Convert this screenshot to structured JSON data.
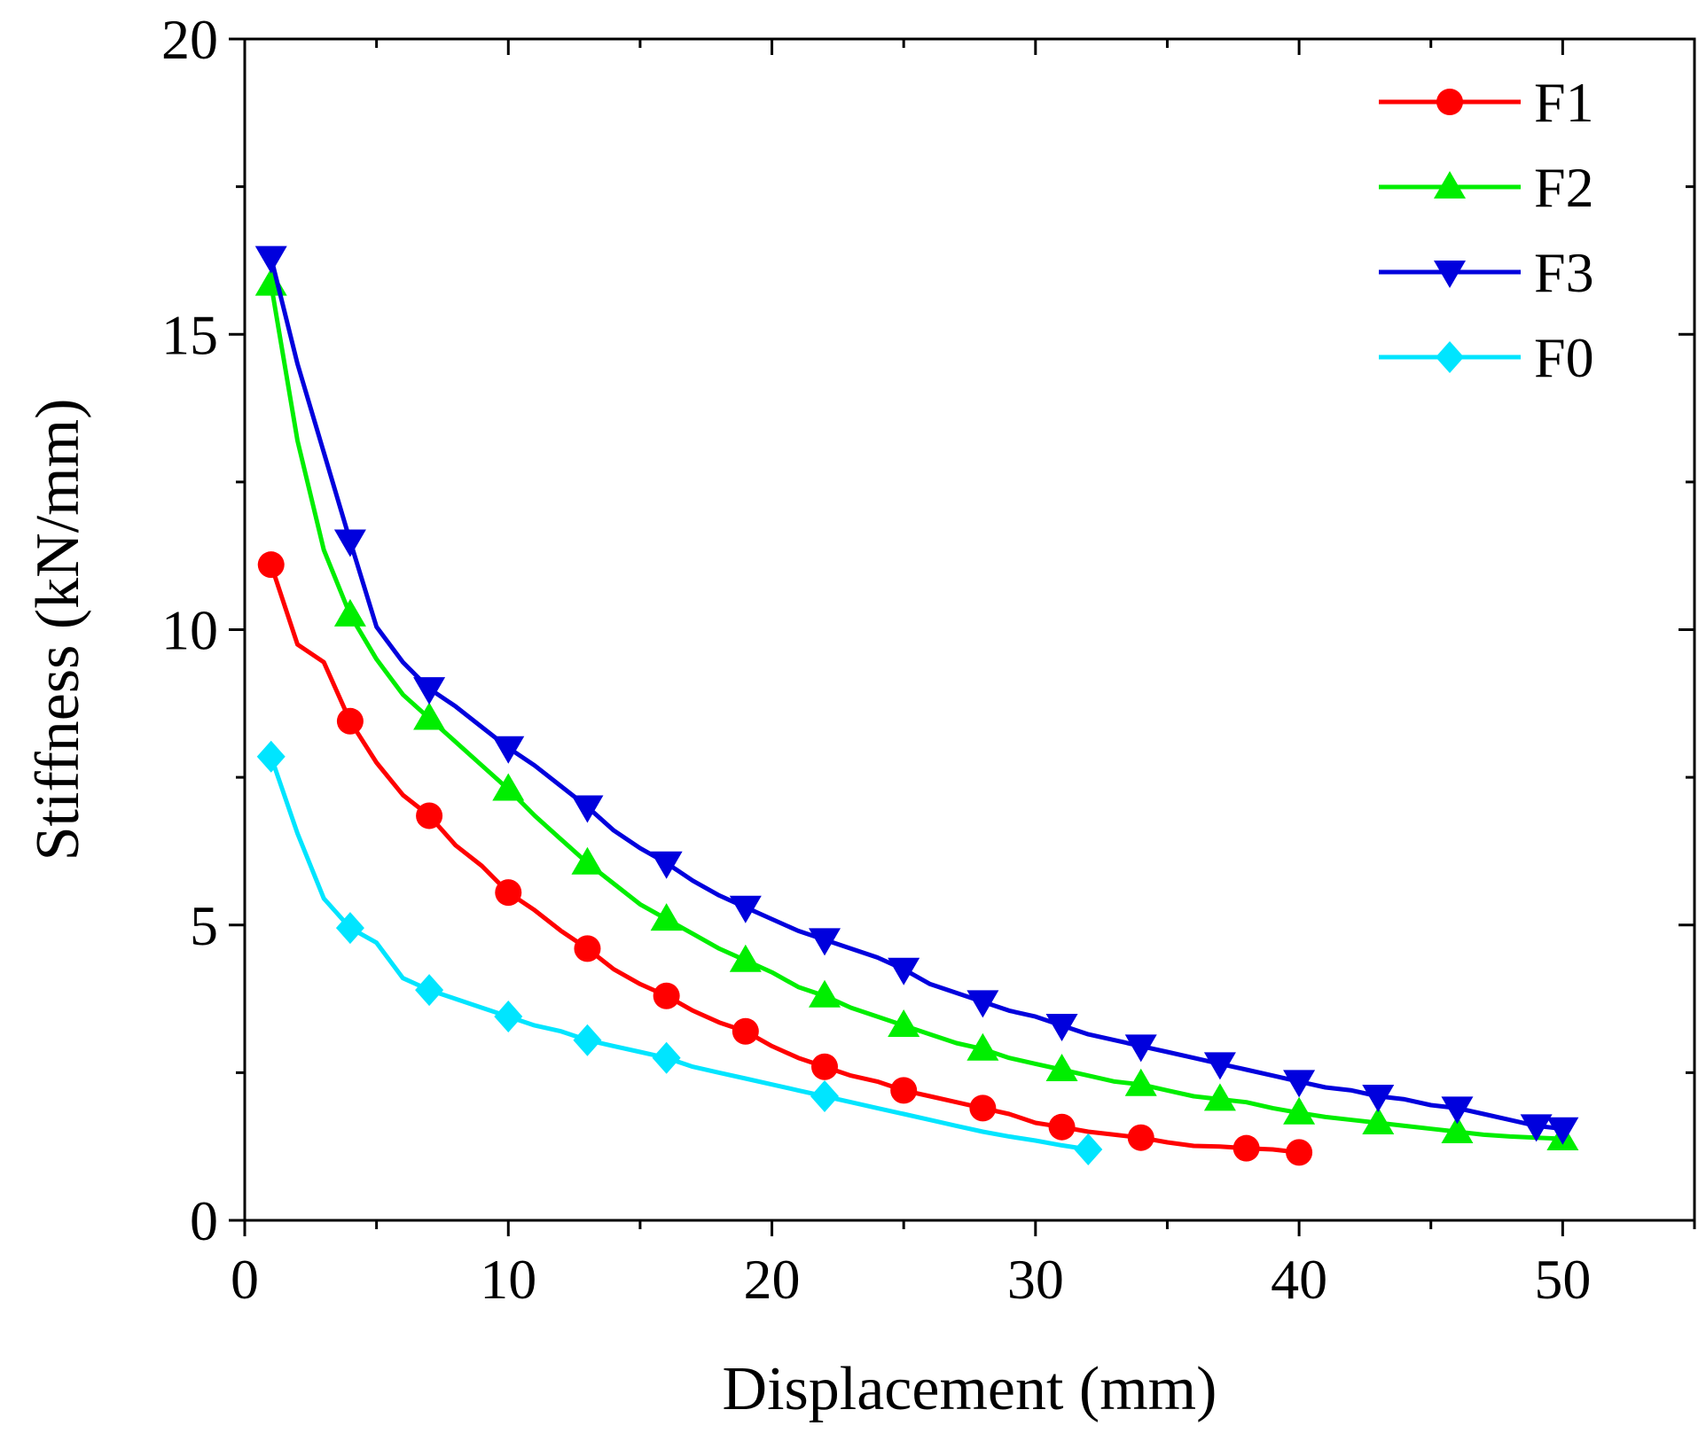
{
  "chart_data": {
    "type": "line",
    "title": "",
    "xlabel": "Displacement (mm)",
    "ylabel": "Stiffness (kN/mm)",
    "xlim": [
      0,
      55
    ],
    "ylim": [
      0,
      20
    ],
    "xticks": [
      0,
      10,
      20,
      30,
      40,
      50
    ],
    "yticks": [
      0,
      5,
      10,
      15,
      20
    ],
    "grid": false,
    "legend_position": "top-right",
    "series": [
      {
        "name": "F1",
        "color": "#ff0000",
        "marker": "circle",
        "line": [
          [
            1,
            11.1
          ],
          [
            2,
            9.75
          ],
          [
            3,
            9.45
          ],
          [
            4,
            8.45
          ],
          [
            5,
            7.75
          ],
          [
            6,
            7.2
          ],
          [
            7,
            6.85
          ],
          [
            8,
            6.35
          ],
          [
            9,
            6.0
          ],
          [
            10,
            5.55
          ],
          [
            11,
            5.25
          ],
          [
            12,
            4.9
          ],
          [
            13,
            4.6
          ],
          [
            14,
            4.25
          ],
          [
            15,
            4.0
          ],
          [
            16,
            3.8
          ],
          [
            17,
            3.55
          ],
          [
            18,
            3.35
          ],
          [
            19,
            3.2
          ],
          [
            20,
            2.95
          ],
          [
            21,
            2.75
          ],
          [
            22,
            2.6
          ],
          [
            23,
            2.45
          ],
          [
            24,
            2.35
          ],
          [
            25,
            2.2
          ],
          [
            26,
            2.1
          ],
          [
            27,
            2.0
          ],
          [
            28,
            1.9
          ],
          [
            29,
            1.8
          ],
          [
            30,
            1.65
          ],
          [
            31,
            1.58
          ],
          [
            32,
            1.5
          ],
          [
            33,
            1.45
          ],
          [
            34,
            1.4
          ],
          [
            35,
            1.32
          ],
          [
            36,
            1.26
          ],
          [
            37,
            1.25
          ],
          [
            38,
            1.22
          ],
          [
            39,
            1.2
          ],
          [
            40,
            1.15
          ]
        ],
        "markers": [
          [
            1,
            11.1
          ],
          [
            4,
            8.45
          ],
          [
            7,
            6.85
          ],
          [
            10,
            5.55
          ],
          [
            13,
            4.6
          ],
          [
            16,
            3.8
          ],
          [
            19,
            3.2
          ],
          [
            22,
            2.6
          ],
          [
            25,
            2.2
          ],
          [
            28,
            1.9
          ],
          [
            31,
            1.58
          ],
          [
            34,
            1.4
          ],
          [
            38,
            1.22
          ],
          [
            40,
            1.15
          ]
        ]
      },
      {
        "name": "F2",
        "color": "#00ee00",
        "marker": "triangle-up",
        "line": [
          [
            1,
            15.85
          ],
          [
            2,
            13.2
          ],
          [
            3,
            11.35
          ],
          [
            4,
            10.25
          ],
          [
            5,
            9.5
          ],
          [
            6,
            8.9
          ],
          [
            7,
            8.5
          ],
          [
            8,
            8.1
          ],
          [
            9,
            7.7
          ],
          [
            10,
            7.3
          ],
          [
            11,
            6.85
          ],
          [
            12,
            6.45
          ],
          [
            13,
            6.05
          ],
          [
            14,
            5.7
          ],
          [
            15,
            5.35
          ],
          [
            16,
            5.1
          ],
          [
            17,
            4.85
          ],
          [
            18,
            4.6
          ],
          [
            19,
            4.4
          ],
          [
            20,
            4.2
          ],
          [
            21,
            3.95
          ],
          [
            22,
            3.8
          ],
          [
            23,
            3.6
          ],
          [
            24,
            3.45
          ],
          [
            25,
            3.3
          ],
          [
            26,
            3.15
          ],
          [
            27,
            3.0
          ],
          [
            28,
            2.9
          ],
          [
            29,
            2.75
          ],
          [
            30,
            2.65
          ],
          [
            31,
            2.55
          ],
          [
            32,
            2.45
          ],
          [
            33,
            2.35
          ],
          [
            34,
            2.3
          ],
          [
            35,
            2.2
          ],
          [
            36,
            2.1
          ],
          [
            37,
            2.05
          ],
          [
            38,
            2.0
          ],
          [
            39,
            1.9
          ],
          [
            40,
            1.82
          ],
          [
            41,
            1.75
          ],
          [
            42,
            1.7
          ],
          [
            43,
            1.65
          ],
          [
            44,
            1.6
          ],
          [
            45,
            1.55
          ],
          [
            46,
            1.5
          ],
          [
            47,
            1.45
          ],
          [
            48,
            1.42
          ],
          [
            49,
            1.4
          ],
          [
            50,
            1.38
          ]
        ],
        "markers": [
          [
            1,
            15.85
          ],
          [
            4,
            10.25
          ],
          [
            7,
            8.5
          ],
          [
            10,
            7.3
          ],
          [
            13,
            6.05
          ],
          [
            16,
            5.1
          ],
          [
            19,
            4.4
          ],
          [
            22,
            3.8
          ],
          [
            25,
            3.3
          ],
          [
            28,
            2.9
          ],
          [
            31,
            2.55
          ],
          [
            34,
            2.3
          ],
          [
            37,
            2.05
          ],
          [
            40,
            1.82
          ],
          [
            43,
            1.65
          ],
          [
            46,
            1.5
          ],
          [
            50,
            1.38
          ]
        ]
      },
      {
        "name": "F3",
        "color": "#0000dd",
        "marker": "triangle-down",
        "line": [
          [
            1,
            16.3
          ],
          [
            2,
            14.5
          ],
          [
            3,
            13.0
          ],
          [
            4,
            11.5
          ],
          [
            5,
            10.05
          ],
          [
            6,
            9.45
          ],
          [
            7,
            9.0
          ],
          [
            8,
            8.7
          ],
          [
            9,
            8.35
          ],
          [
            10,
            8.0
          ],
          [
            11,
            7.7
          ],
          [
            12,
            7.35
          ],
          [
            13,
            7.0
          ],
          [
            14,
            6.6
          ],
          [
            15,
            6.3
          ],
          [
            16,
            6.05
          ],
          [
            17,
            5.75
          ],
          [
            18,
            5.5
          ],
          [
            19,
            5.3
          ],
          [
            20,
            5.1
          ],
          [
            21,
            4.9
          ],
          [
            22,
            4.75
          ],
          [
            23,
            4.6
          ],
          [
            24,
            4.45
          ],
          [
            25,
            4.25
          ],
          [
            26,
            4.0
          ],
          [
            27,
            3.85
          ],
          [
            28,
            3.7
          ],
          [
            29,
            3.55
          ],
          [
            30,
            3.45
          ],
          [
            31,
            3.3
          ],
          [
            32,
            3.15
          ],
          [
            33,
            3.05
          ],
          [
            34,
            2.95
          ],
          [
            35,
            2.85
          ],
          [
            36,
            2.75
          ],
          [
            37,
            2.65
          ],
          [
            38,
            2.55
          ],
          [
            39,
            2.45
          ],
          [
            40,
            2.35
          ],
          [
            41,
            2.25
          ],
          [
            42,
            2.2
          ],
          [
            43,
            2.1
          ],
          [
            44,
            2.05
          ],
          [
            45,
            1.95
          ],
          [
            46,
            1.9
          ],
          [
            47,
            1.8
          ],
          [
            48,
            1.7
          ],
          [
            49,
            1.6
          ],
          [
            50,
            1.55
          ]
        ],
        "markers": [
          [
            1,
            16.3
          ],
          [
            4,
            11.5
          ],
          [
            7,
            9.0
          ],
          [
            10,
            8.0
          ],
          [
            13,
            7.0
          ],
          [
            16,
            6.05
          ],
          [
            19,
            5.3
          ],
          [
            22,
            4.75
          ],
          [
            25,
            4.25
          ],
          [
            28,
            3.7
          ],
          [
            31,
            3.3
          ],
          [
            34,
            2.95
          ],
          [
            37,
            2.65
          ],
          [
            40,
            2.35
          ],
          [
            43,
            2.1
          ],
          [
            46,
            1.9
          ],
          [
            49,
            1.6
          ],
          [
            50,
            1.55
          ]
        ]
      },
      {
        "name": "F0",
        "color": "#00e5ff",
        "marker": "diamond",
        "line": [
          [
            1,
            7.85
          ],
          [
            2,
            6.55
          ],
          [
            3,
            5.45
          ],
          [
            4,
            4.95
          ],
          [
            5,
            4.7
          ],
          [
            6,
            4.1
          ],
          [
            7,
            3.9
          ],
          [
            8,
            3.75
          ],
          [
            9,
            3.6
          ],
          [
            10,
            3.45
          ],
          [
            11,
            3.3
          ],
          [
            12,
            3.2
          ],
          [
            13,
            3.05
          ],
          [
            14,
            2.95
          ],
          [
            15,
            2.85
          ],
          [
            16,
            2.75
          ],
          [
            17,
            2.6
          ],
          [
            18,
            2.5
          ],
          [
            19,
            2.4
          ],
          [
            20,
            2.3
          ],
          [
            21,
            2.2
          ],
          [
            22,
            2.1
          ],
          [
            23,
            2.0
          ],
          [
            24,
            1.9
          ],
          [
            25,
            1.8
          ],
          [
            26,
            1.7
          ],
          [
            27,
            1.6
          ],
          [
            28,
            1.5
          ],
          [
            29,
            1.42
          ],
          [
            30,
            1.35
          ],
          [
            31,
            1.27
          ],
          [
            32,
            1.2
          ]
        ],
        "markers": [
          [
            1,
            7.85
          ],
          [
            4,
            4.95
          ],
          [
            7,
            3.9
          ],
          [
            10,
            3.45
          ],
          [
            13,
            3.05
          ],
          [
            16,
            2.75
          ],
          [
            22,
            2.1
          ],
          [
            32,
            1.2
          ]
        ]
      }
    ]
  }
}
